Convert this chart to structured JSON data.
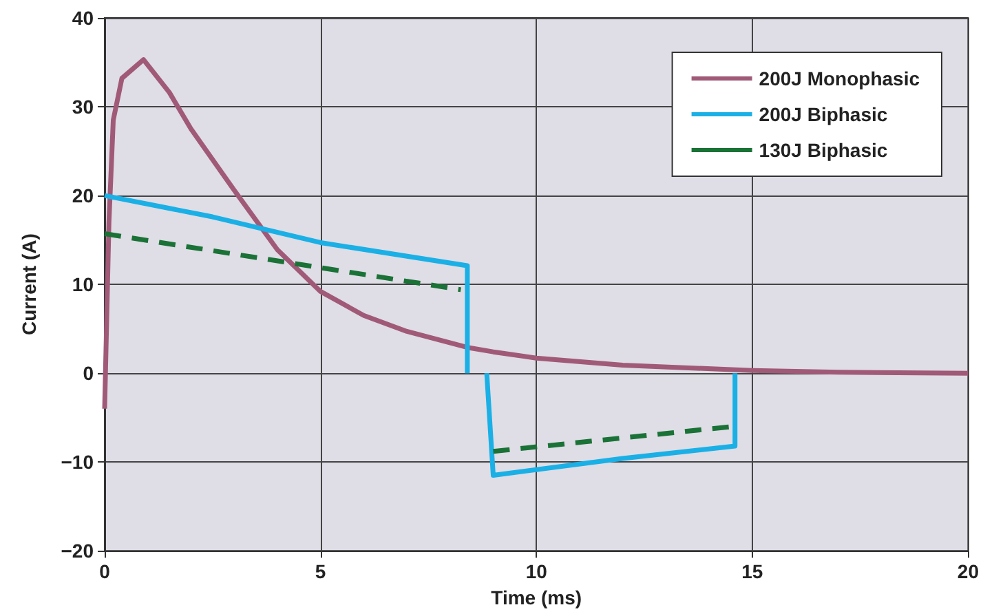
{
  "chart_data": {
    "type": "line",
    "xlabel": "Time (ms)",
    "ylabel": "Current (A)",
    "xlim": [
      0,
      20
    ],
    "xticks": [
      0,
      5,
      10,
      15,
      20
    ],
    "ylim": [
      -20,
      40
    ],
    "yticks": [
      {
        "value": -20,
        "label": "−20"
      },
      {
        "value": -10,
        "label": "−10"
      },
      0,
      10,
      20,
      30,
      40
    ],
    "grid": true,
    "legend": "top right",
    "line_style": "solid",
    "marker": "none",
    "series": [
      {
        "name": "200J Monophasic",
        "color": "#a05a78",
        "x": [
          0,
          0.1,
          0.2,
          0.4,
          0.9,
          1.5,
          2,
          3,
          4,
          5,
          6,
          7,
          8.4,
          9,
          10,
          12,
          15,
          17,
          20
        ],
        "values": [
          -4,
          17,
          28.5,
          33.2,
          35.3,
          31.6,
          27.5,
          20.6,
          13.9,
          9.2,
          6.5,
          4.7,
          2.9,
          2.4,
          1.7,
          0.9,
          0.3,
          0.1,
          0
        ]
      },
      {
        "name": "200J Biphasic",
        "color": "#1ab0e6",
        "x": [
          0,
          2.5,
          5,
          8.4,
          8.4,
          8.6,
          8.85,
          9.0,
          12,
          14.6,
          14.6
        ],
        "values": [
          20,
          17.6,
          14.7,
          12.1,
          0,
          null,
          0,
          -11.5,
          -9.6,
          -8.2,
          0
        ]
      },
      {
        "name": "130J Biphasic",
        "color": "#1a7236",
        "line_style": "dashed",
        "x": [
          0,
          8.25,
          8.6,
          9.0,
          14.55
        ],
        "values": [
          15.7,
          9.4,
          null,
          -8.8,
          -6.0
        ]
      }
    ]
  }
}
